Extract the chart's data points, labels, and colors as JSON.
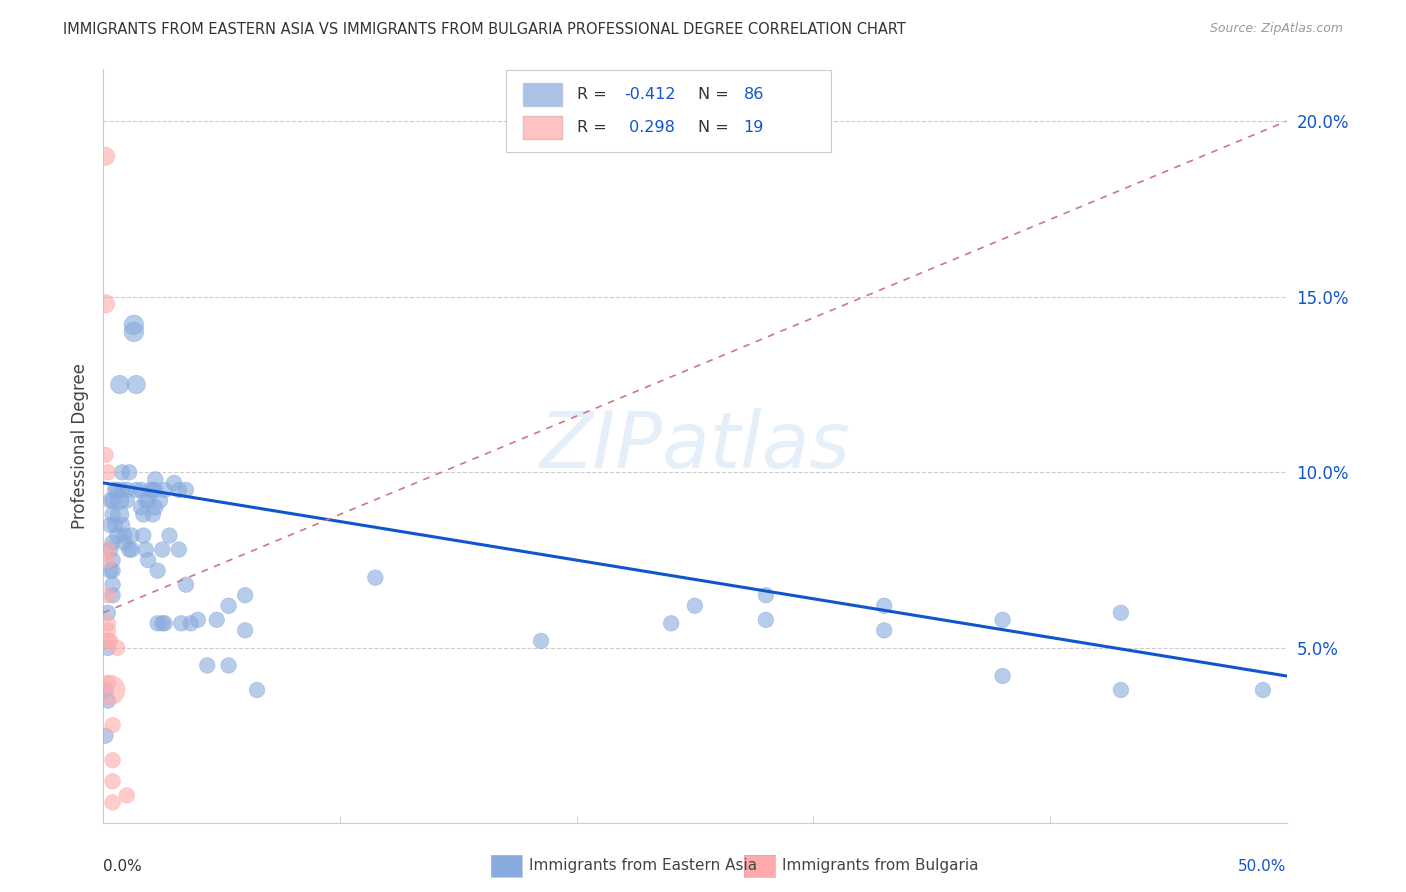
{
  "title": "IMMIGRANTS FROM EASTERN ASIA VS IMMIGRANTS FROM BULGARIA PROFESSIONAL DEGREE CORRELATION CHART",
  "source": "Source: ZipAtlas.com",
  "ylabel": "Professional Degree",
  "y_ticks": [
    0.05,
    0.1,
    0.15,
    0.2
  ],
  "y_tick_labels": [
    "5.0%",
    "10.0%",
    "15.0%",
    "20.0%"
  ],
  "xlim": [
    0.0,
    0.5
  ],
  "ylim": [
    0.0,
    0.215
  ],
  "legend_label1": "Immigrants from Eastern Asia",
  "legend_label2": "Immigrants from Bulgaria",
  "color_blue": "#88AADD",
  "color_pink": "#FFAAAA",
  "color_blue_line": "#1155CC",
  "color_pink_line": "#CC7788",
  "watermark": "ZIPatlas",
  "grid_color": "#CCCCCC",
  "blue_points": [
    [
      0.001,
      0.038
    ],
    [
      0.001,
      0.025
    ],
    [
      0.002,
      0.035
    ],
    [
      0.002,
      0.06
    ],
    [
      0.002,
      0.05
    ],
    [
      0.003,
      0.072
    ],
    [
      0.003,
      0.085
    ],
    [
      0.003,
      0.078
    ],
    [
      0.003,
      0.092
    ],
    [
      0.004,
      0.088
    ],
    [
      0.004,
      0.075
    ],
    [
      0.004,
      0.072
    ],
    [
      0.004,
      0.08
    ],
    [
      0.004,
      0.065
    ],
    [
      0.004,
      0.092
    ],
    [
      0.004,
      0.068
    ],
    [
      0.005,
      0.085
    ],
    [
      0.005,
      0.095
    ],
    [
      0.006,
      0.082
    ],
    [
      0.006,
      0.095
    ],
    [
      0.007,
      0.125
    ],
    [
      0.007,
      0.088
    ],
    [
      0.007,
      0.092
    ],
    [
      0.008,
      0.085
    ],
    [
      0.008,
      0.095
    ],
    [
      0.008,
      0.1
    ],
    [
      0.009,
      0.08
    ],
    [
      0.009,
      0.082
    ],
    [
      0.01,
      0.095
    ],
    [
      0.01,
      0.092
    ],
    [
      0.011,
      0.1
    ],
    [
      0.011,
      0.078
    ],
    [
      0.012,
      0.078
    ],
    [
      0.012,
      0.082
    ],
    [
      0.013,
      0.142
    ],
    [
      0.013,
      0.14
    ],
    [
      0.014,
      0.125
    ],
    [
      0.014,
      0.095
    ],
    [
      0.016,
      0.095
    ],
    [
      0.016,
      0.09
    ],
    [
      0.017,
      0.088
    ],
    [
      0.017,
      0.082
    ],
    [
      0.018,
      0.092
    ],
    [
      0.018,
      0.078
    ],
    [
      0.019,
      0.092
    ],
    [
      0.019,
      0.075
    ],
    [
      0.02,
      0.095
    ],
    [
      0.021,
      0.095
    ],
    [
      0.021,
      0.088
    ],
    [
      0.022,
      0.095
    ],
    [
      0.022,
      0.09
    ],
    [
      0.022,
      0.098
    ],
    [
      0.023,
      0.072
    ],
    [
      0.023,
      0.057
    ],
    [
      0.024,
      0.092
    ],
    [
      0.025,
      0.078
    ],
    [
      0.025,
      0.057
    ],
    [
      0.026,
      0.095
    ],
    [
      0.026,
      0.057
    ],
    [
      0.028,
      0.082
    ],
    [
      0.03,
      0.097
    ],
    [
      0.032,
      0.095
    ],
    [
      0.032,
      0.078
    ],
    [
      0.033,
      0.057
    ],
    [
      0.035,
      0.095
    ],
    [
      0.035,
      0.068
    ],
    [
      0.037,
      0.057
    ],
    [
      0.04,
      0.058
    ],
    [
      0.044,
      0.045
    ],
    [
      0.048,
      0.058
    ],
    [
      0.053,
      0.062
    ],
    [
      0.053,
      0.045
    ],
    [
      0.06,
      0.065
    ],
    [
      0.06,
      0.055
    ],
    [
      0.065,
      0.038
    ],
    [
      0.115,
      0.07
    ],
    [
      0.185,
      0.052
    ],
    [
      0.24,
      0.057
    ],
    [
      0.25,
      0.062
    ],
    [
      0.28,
      0.065
    ],
    [
      0.28,
      0.058
    ],
    [
      0.33,
      0.062
    ],
    [
      0.33,
      0.055
    ],
    [
      0.38,
      0.058
    ],
    [
      0.38,
      0.042
    ],
    [
      0.43,
      0.038
    ],
    [
      0.43,
      0.06
    ],
    [
      0.49,
      0.038
    ]
  ],
  "blue_sizes": [
    25,
    25,
    25,
    25,
    25,
    25,
    25,
    25,
    25,
    25,
    25,
    25,
    25,
    25,
    25,
    25,
    25,
    25,
    25,
    25,
    35,
    35,
    35,
    25,
    25,
    25,
    25,
    25,
    25,
    25,
    25,
    25,
    25,
    25,
    40,
    40,
    35,
    25,
    25,
    25,
    25,
    25,
    25,
    25,
    25,
    25,
    25,
    25,
    25,
    25,
    25,
    25,
    25,
    25,
    25,
    25,
    25,
    25,
    25,
    25,
    25,
    25,
    25,
    25,
    25,
    25,
    25,
    25,
    25,
    25,
    25,
    25,
    25,
    25,
    25,
    25,
    25,
    25,
    25,
    25,
    25,
    25,
    25,
    25,
    25,
    25,
    25,
    25
  ],
  "pink_points": [
    [
      0.001,
      0.19
    ],
    [
      0.001,
      0.148
    ],
    [
      0.001,
      0.105
    ],
    [
      0.002,
      0.1
    ],
    [
      0.002,
      0.078
    ],
    [
      0.002,
      0.075
    ],
    [
      0.002,
      0.065
    ],
    [
      0.002,
      0.057
    ],
    [
      0.002,
      0.055
    ],
    [
      0.002,
      0.052
    ],
    [
      0.002,
      0.04
    ],
    [
      0.003,
      0.038
    ],
    [
      0.003,
      0.052
    ],
    [
      0.004,
      0.028
    ],
    [
      0.004,
      0.018
    ],
    [
      0.004,
      0.012
    ],
    [
      0.004,
      0.006
    ],
    [
      0.006,
      0.05
    ],
    [
      0.01,
      0.008
    ]
  ],
  "pink_sizes": [
    35,
    35,
    25,
    25,
    25,
    25,
    25,
    25,
    25,
    25,
    25,
    90,
    25,
    25,
    25,
    25,
    25,
    25,
    25
  ],
  "blue_trend_x": [
    0.0,
    0.5
  ],
  "blue_trend_y": [
    0.097,
    0.042
  ],
  "pink_trend_x": [
    0.0,
    0.5
  ],
  "pink_trend_y": [
    0.06,
    0.2
  ]
}
